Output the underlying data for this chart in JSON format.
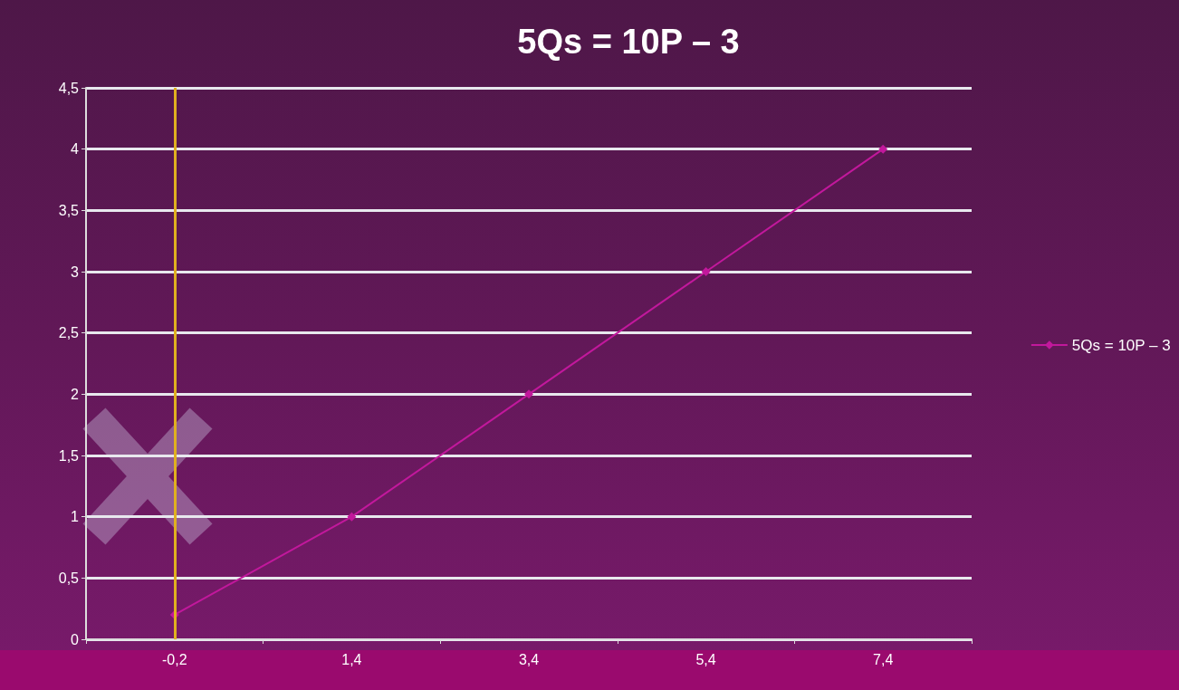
{
  "chart_data": {
    "type": "line",
    "title": "5Qs = 10P – 3",
    "categories": [
      "-0,2",
      "1,4",
      "3,4",
      "5,4",
      "7,4"
    ],
    "series": [
      {
        "name": "5Qs = 10P – 3",
        "color": "#c2189c",
        "values": [
          0.2,
          1,
          2,
          3,
          4
        ]
      }
    ],
    "ylim": [
      0,
      4.5
    ],
    "yticks": [
      0,
      {
        "value": 0.5,
        "label": "0,5"
      },
      1,
      {
        "value": 1.5,
        "label": "1,5"
      },
      2,
      {
        "value": 2.5,
        "label": "2,5"
      },
      3,
      {
        "value": 3.5,
        "label": "3,5"
      },
      4,
      {
        "value": 4.5,
        "label": "4,5"
      }
    ],
    "ref_lines": [
      {
        "axis": "x",
        "value": "-0,2",
        "color": "#e0b020"
      }
    ],
    "grid": "y",
    "legend": "right",
    "marker": "diamond",
    "line_style": "solid"
  }
}
